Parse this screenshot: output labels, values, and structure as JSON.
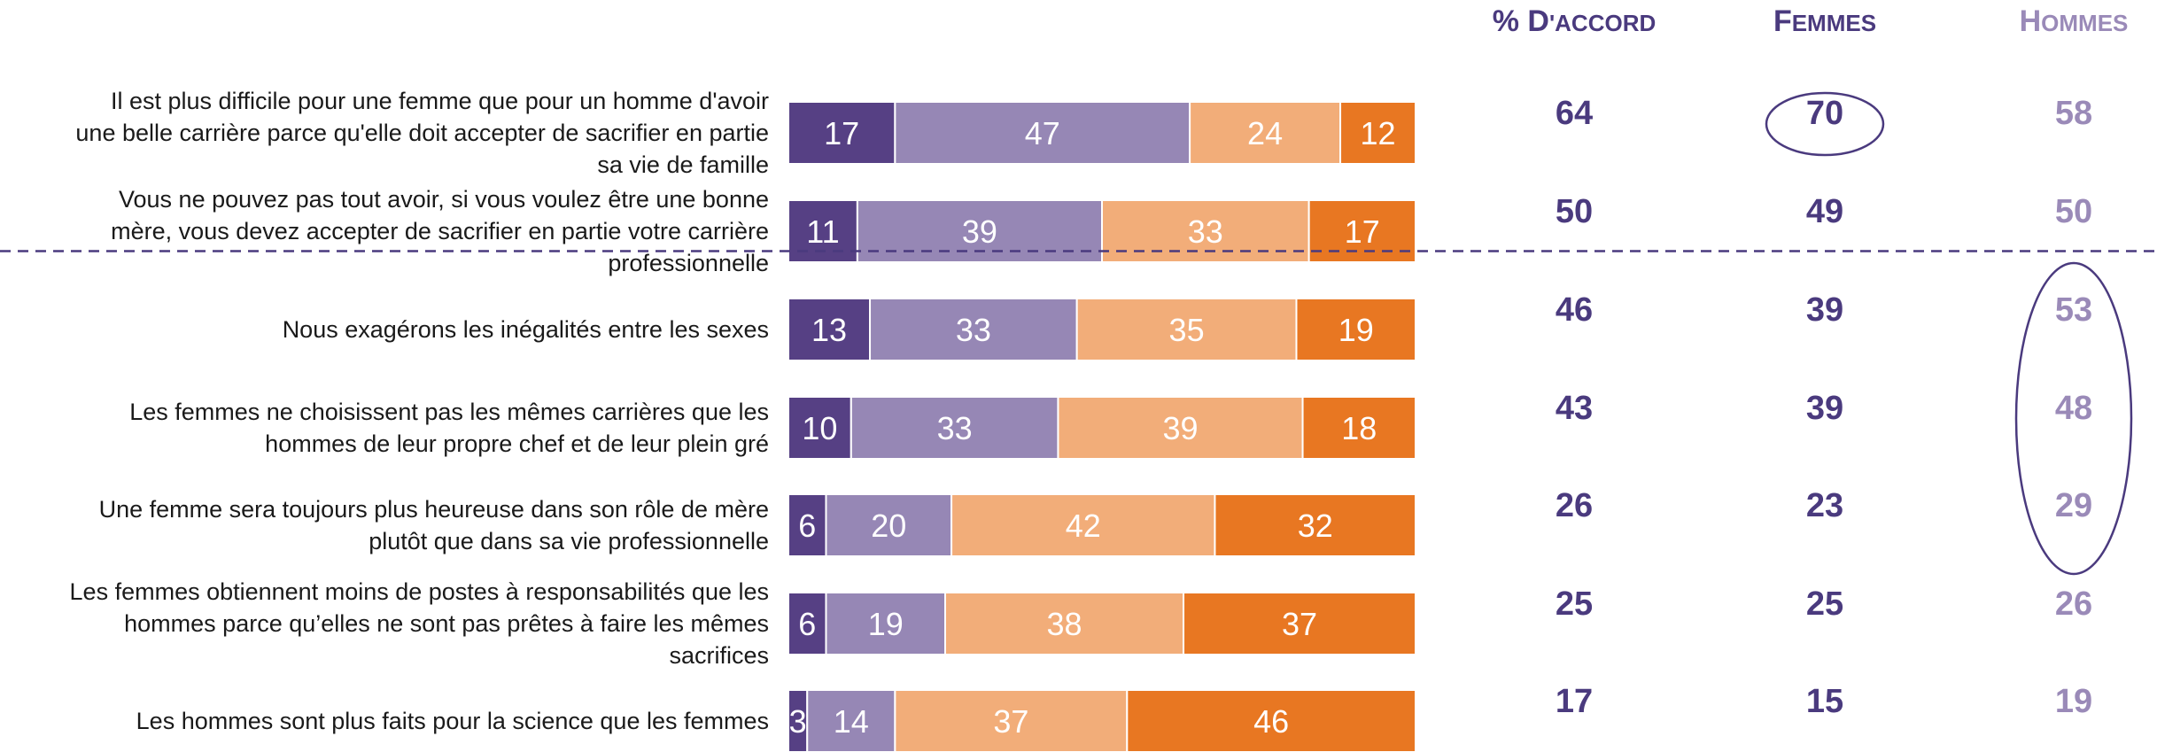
{
  "chart_data": {
    "type": "bar",
    "stacked": true,
    "orientation": "horizontal",
    "columns": [
      {
        "key": "accord",
        "prefix": "% ",
        "first": "D",
        "rest": "'ACCORD",
        "color": "#4a3a7e"
      },
      {
        "key": "femmes",
        "prefix": "",
        "first": "F",
        "rest": "EMMES",
        "color": "#4a3a7e"
      },
      {
        "key": "hommes",
        "prefix": "",
        "first": "H",
        "rest": "OMMES",
        "color": "#9a8ab8"
      }
    ],
    "segment_colors": [
      "#564084",
      "#9687b5",
      "#f2ad79",
      "#e87722"
    ],
    "rows": [
      {
        "label_lines": [
          "Il est plus difficile pour une femme que pour un homme d'avoir",
          "une belle carrière parce qu'elle doit accepter de sacrifier en partie",
          "sa vie de famille"
        ],
        "values": [
          17,
          47,
          24,
          12
        ],
        "accord": 64,
        "femmes": 70,
        "hommes": 58
      },
      {
        "label_lines": [
          "Vous ne pouvez pas tout avoir, si vous voulez être une bonne",
          "mère, vous devez accepter de sacrifier en partie votre carrière",
          "professionnelle"
        ],
        "values": [
          11,
          39,
          33,
          17
        ],
        "accord": 50,
        "femmes": 49,
        "hommes": 50
      },
      {
        "label_lines": [
          "Nous exagérons les inégalités entre les sexes"
        ],
        "values": [
          13,
          33,
          35,
          19
        ],
        "accord": 46,
        "femmes": 39,
        "hommes": 53
      },
      {
        "label_lines": [
          "Les femmes ne choisissent pas les mêmes carrières que les",
          "hommes de leur propre chef et de leur plein gré"
        ],
        "values": [
          10,
          33,
          39,
          18
        ],
        "accord": 43,
        "femmes": 39,
        "hommes": 48
      },
      {
        "label_lines": [
          "Une femme sera toujours plus heureuse dans son rôle de mère",
          "plutôt que dans sa vie professionnelle"
        ],
        "values": [
          6,
          20,
          42,
          32
        ],
        "accord": 26,
        "femmes": 23,
        "hommes": 29
      },
      {
        "label_lines": [
          "Les femmes obtiennent moins de postes à responsabilités que les",
          "hommes parce qu’elles ne sont pas prêtes à faire les mêmes",
          "sacrifices"
        ],
        "values": [
          6,
          19,
          38,
          37
        ],
        "accord": 25,
        "femmes": 25,
        "hommes": 26
      },
      {
        "label_lines": [
          "Les hommes sont plus faits pour la science que les femmes"
        ],
        "values": [
          3,
          14,
          37,
          46
        ],
        "accord": 17,
        "femmes": 15,
        "hommes": 19
      }
    ],
    "highlights": [
      {
        "column": "femmes",
        "rows": [
          0
        ]
      },
      {
        "column": "hommes",
        "rows": [
          2,
          3,
          4
        ]
      }
    ],
    "separator_after_row": 1
  }
}
